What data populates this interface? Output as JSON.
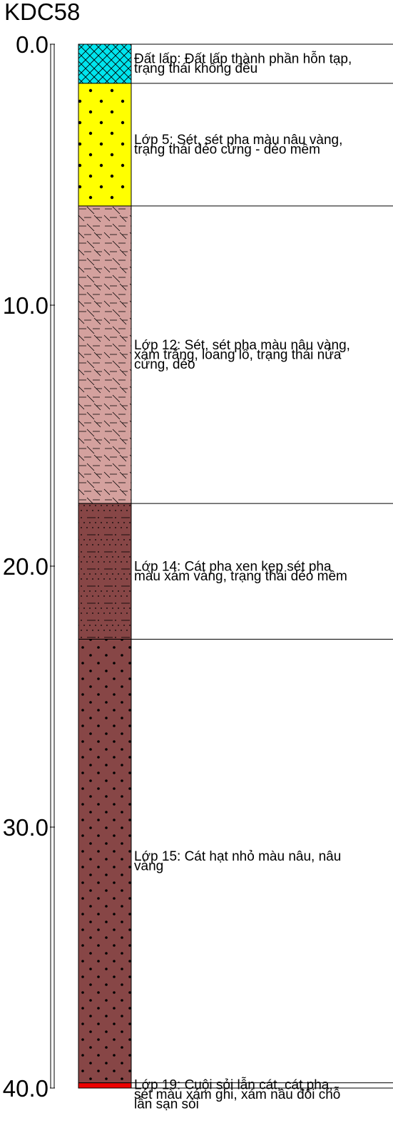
{
  "borehole": {
    "title": "KDC58",
    "depth_unit": "m",
    "depth_range": [
      0,
      40
    ],
    "depth_ticks": [
      {
        "value": 0,
        "label": "0.0"
      },
      {
        "value": 10,
        "label": "10.0"
      },
      {
        "value": 20,
        "label": "20.0"
      },
      {
        "value": 30,
        "label": "30.0"
      },
      {
        "value": 40,
        "label": "40.0"
      }
    ]
  },
  "layers": [
    {
      "top": 0.0,
      "bottom": 1.5,
      "pattern": "crosshatch",
      "fill": "#00e5ee",
      "ink": "#000000",
      "lines": [
        "Đất lấp: Đất lấp thành phần hỗn tạp,",
        "trạng thái không đều"
      ]
    },
    {
      "top": 1.5,
      "bottom": 6.2,
      "pattern": "dots",
      "fill": "#ffff00",
      "ink": "#000000",
      "lines": [
        "Lớp 5: Sét, sét pha màu nâu vàng,",
        "trạng thái dẻo cứng - dẻo mềm"
      ]
    },
    {
      "top": 6.2,
      "bottom": 17.6,
      "pattern": "clay-dash",
      "fill": "#d4a19e",
      "ink": "#000000",
      "lines": [
        "Lớp 12: Sét, sét pha màu nâu vàng,",
        "xám trắng, loang lổ, trạng thái nửa",
        "cứng, dẻo"
      ]
    },
    {
      "top": 17.6,
      "bottom": 22.8,
      "pattern": "sand-dash",
      "fill": "#874646",
      "ink": "#000000",
      "lines": [
        "Lớp 14: Cát pha xen kẹp sét pha",
        "màu xám vàng, trạng thái dẻo mềm"
      ]
    },
    {
      "top": 22.8,
      "bottom": 39.8,
      "pattern": "big-dots",
      "fill": "#874646",
      "ink": "#000000",
      "lines": [
        "Lớp 15: Cát hạt nhỏ màu nâu, nâu",
        "vàng"
      ]
    },
    {
      "top": 39.8,
      "bottom": 40.0,
      "pattern": "solid",
      "fill": "#ee0000",
      "ink": "#000000",
      "lines": [
        "Lớp 19: Cuội sỏi lẫn cát, cát pha,",
        "sét màu xám ghi, xám nâu đôi chỗ",
        "lẫn sạn sỏi"
      ]
    }
  ]
}
